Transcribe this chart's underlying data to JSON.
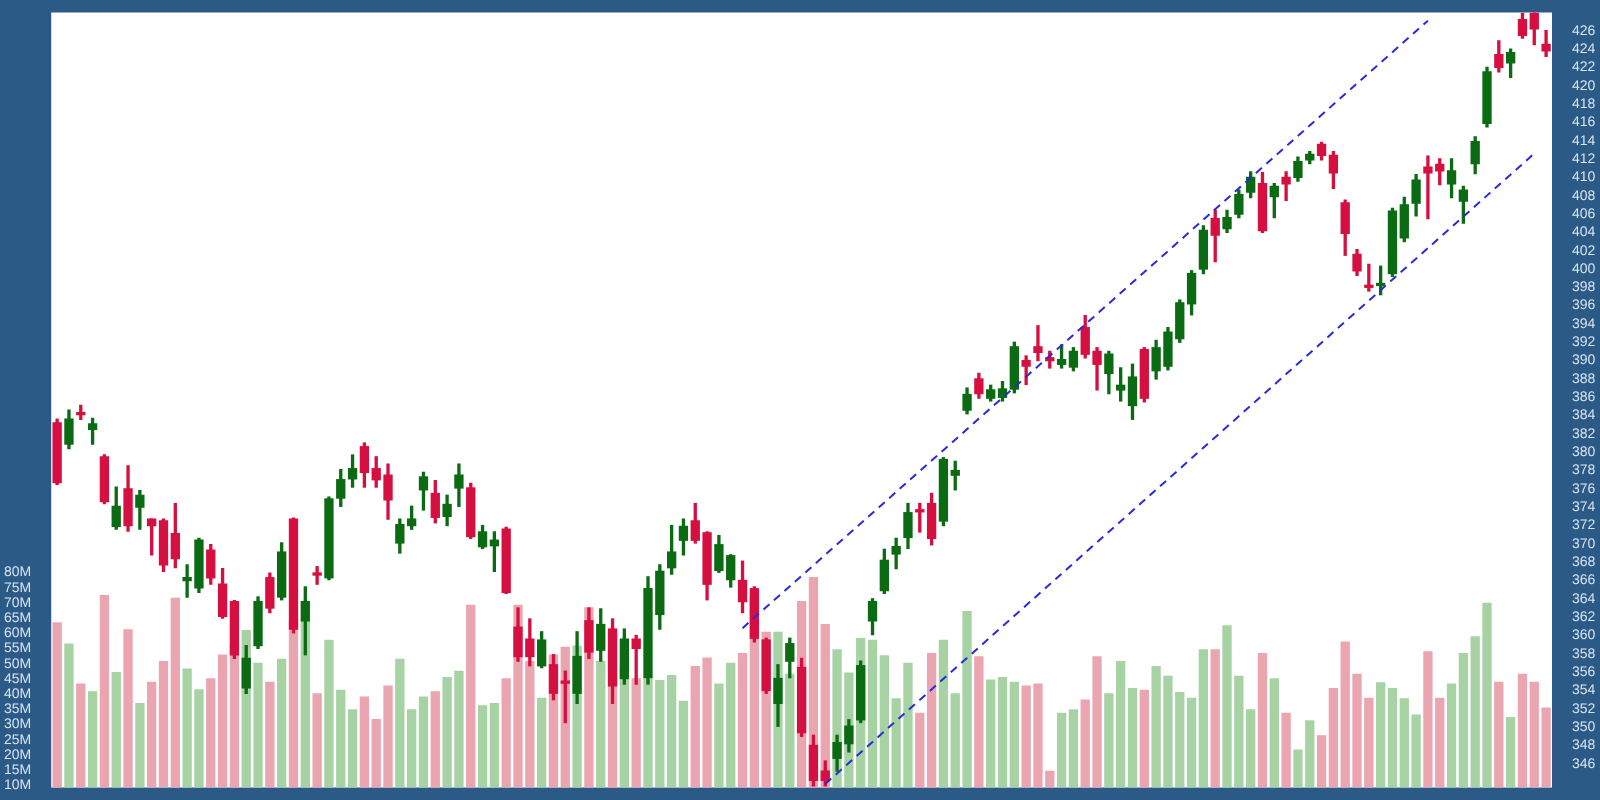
{
  "chart_data": {
    "type": "candlestick",
    "categories": [
      null,
      null,
      null,
      null,
      null,
      null,
      null,
      null,
      null,
      null,
      null,
      null,
      null,
      null,
      null,
      null,
      null,
      null,
      null,
      null,
      null,
      null,
      null,
      null,
      null,
      null,
      null,
      null,
      null,
      null,
      null,
      null,
      null,
      null,
      null,
      null,
      null,
      null,
      null,
      null,
      null,
      null,
      null,
      null,
      null,
      null,
      null,
      null,
      null,
      null,
      null,
      null,
      null,
      null,
      null,
      null,
      null,
      null,
      null,
      null,
      null,
      null,
      null,
      null,
      null,
      null,
      null,
      null,
      null,
      null,
      null,
      null,
      null,
      null,
      null,
      null,
      null,
      null,
      null,
      null,
      null,
      null,
      null,
      null,
      null,
      null,
      null,
      null,
      null,
      null,
      null,
      null,
      null,
      null,
      null,
      null,
      null,
      null,
      null,
      null,
      null,
      null,
      null,
      null,
      null,
      null,
      null,
      null,
      null,
      null,
      null,
      null,
      null,
      null,
      null,
      null,
      null,
      null,
      null,
      null,
      null,
      null,
      null,
      null,
      null,
      null,
      null
    ],
    "ohlc": [
      [
        383.2,
        383.6,
        376.5,
        376.7
      ],
      [
        380.9,
        384.6,
        380.4,
        383.6
      ],
      [
        384.2,
        385.1,
        383.6,
        384.1
      ],
      [
        382.5,
        383.7,
        380.9,
        383.1
      ],
      [
        379.5,
        379.7,
        374.4,
        374.6
      ],
      [
        371.9,
        376.2,
        371.6,
        374.1
      ],
      [
        376.0,
        378.5,
        371.4,
        372.0
      ],
      [
        374.0,
        375.8,
        371.6,
        375.3
      ],
      [
        372.7,
        372.7,
        368.8,
        372.0
      ],
      [
        372.5,
        372.7,
        367.0,
        367.7
      ],
      [
        371.1,
        374.4,
        367.4,
        368.4
      ],
      [
        366.0,
        367.7,
        364.2,
        366.3
      ],
      [
        365.2,
        370.6,
        364.7,
        370.4
      ],
      [
        369.3,
        369.9,
        365.6,
        366.3
      ],
      [
        365.6,
        367.3,
        361.9,
        362.1
      ],
      [
        363.7,
        363.8,
        357.5,
        357.9
      ],
      [
        354.3,
        358.9,
        353.7,
        357.5
      ],
      [
        358.9,
        364.2,
        358.6,
        363.7
      ],
      [
        366.3,
        366.8,
        362.5,
        363.0
      ],
      [
        364.2,
        370.1,
        363.9,
        369.1
      ],
      [
        372.7,
        372.8,
        360.3,
        360.7
      ],
      [
        361.6,
        365.3,
        357.9,
        363.7
      ],
      [
        366.7,
        367.5,
        365.6,
        366.6
      ],
      [
        366.3,
        375.1,
        366.1,
        374.9
      ],
      [
        375.0,
        378.1,
        374.1,
        377.0
      ],
      [
        377.1,
        379.7,
        376.2,
        378.2
      ],
      [
        380.6,
        381.0,
        376.2,
        377.8
      ],
      [
        378.2,
        379.5,
        376.2,
        377.0
      ],
      [
        377.5,
        378.7,
        372.7,
        374.8
      ],
      [
        370.1,
        372.7,
        369.0,
        372.1
      ],
      [
        372.0,
        374.1,
        371.6,
        372.7
      ],
      [
        375.9,
        377.8,
        373.7,
        377.3
      ],
      [
        375.5,
        376.9,
        372.3,
        372.9
      ],
      [
        373.0,
        375.3,
        372.0,
        374.3
      ],
      [
        376.1,
        378.7,
        374.1,
        377.5
      ],
      [
        376.1,
        376.6,
        370.6,
        370.8
      ],
      [
        369.7,
        372.0,
        369.5,
        371.3
      ],
      [
        369.8,
        371.3,
        367.0,
        370.4
      ],
      [
        371.6,
        371.8,
        364.6,
        364.7
      ],
      [
        360.9,
        363.0,
        357.2,
        357.7
      ],
      [
        359.6,
        361.8,
        356.7,
        357.7
      ],
      [
        356.7,
        360.4,
        356.5,
        359.5
      ],
      [
        356.8,
        357.9,
        353.0,
        353.7
      ],
      [
        354.9,
        356.1,
        350.5,
        354.8
      ],
      [
        353.7,
        360.4,
        352.6,
        357.7
      ],
      [
        361.6,
        363.0,
        357.5,
        358.2
      ],
      [
        358.4,
        362.9,
        357.2,
        361.2
      ],
      [
        360.7,
        361.8,
        352.6,
        354.5
      ],
      [
        355.3,
        360.7,
        354.7,
        359.6
      ],
      [
        359.6,
        360.0,
        354.7,
        358.6
      ],
      [
        355.4,
        366.4,
        354.7,
        365.1
      ],
      [
        362.3,
        367.7,
        360.7,
        367.0
      ],
      [
        367.4,
        372.0,
        366.7,
        369.1
      ],
      [
        370.4,
        372.7,
        368.8,
        371.9
      ],
      [
        372.5,
        374.4,
        370.1,
        370.4
      ],
      [
        371.2,
        371.3,
        363.9,
        365.6
      ],
      [
        367.1,
        370.9,
        366.9,
        369.9
      ],
      [
        366.1,
        368.8,
        365.3,
        368.7
      ],
      [
        366.0,
        368.1,
        362.5,
        363.7
      ],
      [
        365.1,
        365.3,
        359.3,
        359.7
      ],
      [
        359.5,
        359.7,
        353.7,
        354.0
      ],
      [
        352.6,
        356.8,
        350.1,
        355.3
      ],
      [
        357.2,
        359.7,
        355.4,
        359.1
      ],
      [
        356.5,
        357.5,
        349.0,
        349.4
      ],
      [
        348.0,
        349.1,
        343.6,
        344.2
      ],
      [
        345.2,
        346.3,
        343.6,
        344.2
      ],
      [
        346.6,
        349.1,
        345.2,
        348.3
      ],
      [
        348.2,
        350.8,
        347.3,
        350.1
      ],
      [
        350.8,
        357.2,
        350.5,
        356.7
      ],
      [
        361.6,
        364.0,
        360.1,
        363.7
      ],
      [
        364.9,
        369.4,
        364.6,
        368.2
      ],
      [
        368.9,
        370.6,
        367.3,
        369.7
      ],
      [
        370.7,
        374.4,
        369.5,
        373.4
      ],
      [
        373.6,
        374.4,
        371.3,
        373.5
      ],
      [
        374.4,
        375.5,
        369.9,
        370.6
      ],
      [
        372.5,
        379.4,
        372.0,
        379.2
      ],
      [
        377.5,
        379.0,
        375.9,
        378.0
      ],
      [
        384.6,
        387.0,
        384.2,
        386.3
      ],
      [
        388.0,
        388.6,
        385.9,
        386.4
      ],
      [
        385.9,
        387.3,
        385.6,
        386.8
      ],
      [
        386.0,
        387.7,
        385.6,
        386.9
      ],
      [
        386.9,
        392.0,
        386.5,
        391.5
      ],
      [
        390.0,
        390.5,
        387.4,
        389.4
      ],
      [
        391.5,
        393.8,
        390.0,
        390.9
      ],
      [
        390.3,
        391.0,
        389.2,
        390.0
      ],
      [
        389.6,
        391.7,
        389.2,
        390.1
      ],
      [
        389.3,
        391.4,
        388.9,
        391.0
      ],
      [
        393.6,
        394.9,
        390.3,
        390.7
      ],
      [
        391.0,
        391.4,
        386.8,
        389.6
      ],
      [
        388.6,
        391.0,
        386.4,
        390.7
      ],
      [
        386.8,
        389.2,
        385.6,
        387.3
      ],
      [
        385.1,
        389.6,
        383.6,
        388.2
      ],
      [
        391.2,
        391.4,
        385.5,
        385.9
      ],
      [
        388.9,
        392.2,
        388.0,
        391.4
      ],
      [
        389.4,
        393.6,
        389.0,
        393.1
      ],
      [
        392.4,
        396.6,
        392.0,
        396.3
      ],
      [
        396.2,
        399.8,
        395.0,
        399.5
      ],
      [
        400.0,
        404.7,
        399.5,
        404.2
      ],
      [
        405.5,
        406.4,
        400.8,
        403.7
      ],
      [
        404.4,
        406.4,
        404.0,
        405.6
      ],
      [
        406.0,
        408.6,
        405.6,
        408.1
      ],
      [
        408.4,
        410.6,
        407.8,
        410.0
      ],
      [
        409.3,
        410.5,
        404.0,
        404.2
      ],
      [
        407.9,
        409.3,
        405.6,
        409.0
      ],
      [
        410.0,
        410.6,
        407.5,
        409.3
      ],
      [
        410.0,
        412.2,
        409.6,
        411.7
      ],
      [
        411.9,
        412.8,
        411.5,
        412.5
      ],
      [
        413.6,
        413.8,
        411.9,
        412.4
      ],
      [
        412.4,
        412.8,
        408.8,
        410.5
      ],
      [
        407.2,
        407.5,
        401.5,
        403.9
      ],
      [
        401.6,
        402.1,
        399.3,
        399.8
      ],
      [
        398.1,
        400.5,
        397.6,
        398.0
      ],
      [
        398.2,
        400.3,
        397.2,
        398.3
      ],
      [
        399.5,
        406.6,
        399.2,
        406.3
      ],
      [
        403.4,
        407.8,
        403.0,
        407.0
      ],
      [
        407.2,
        410.3,
        405.8,
        409.7
      ],
      [
        411.1,
        412.3,
        405.5,
        410.5
      ],
      [
        411.4,
        412.0,
        409.2,
        410.7
      ],
      [
        409.3,
        412.0,
        407.8,
        410.7
      ],
      [
        407.4,
        409.0,
        405.0,
        408.6
      ],
      [
        411.5,
        414.4,
        410.4,
        413.9
      ],
      [
        415.9,
        422.0,
        415.5,
        421.5
      ],
      [
        423.4,
        424.9,
        421.5,
        422.0
      ],
      [
        422.5,
        424.0,
        420.9,
        423.6
      ],
      [
        427.2,
        427.9,
        425.2,
        425.5
      ],
      [
        427.9,
        428.0,
        424.5,
        426.2
      ],
      [
        424.5,
        426.0,
        423.2,
        423.8
      ]
    ],
    "colors": [
      "#d50f3f",
      "#0a6b12",
      "#d50f3f",
      "#0a6b12",
      "#d50f3f",
      "#0a6b12",
      "#d50f3f",
      "#0a6b12",
      "#d50f3f",
      "#d50f3f",
      "#d50f3f",
      "#0a6b12",
      "#0a6b12",
      "#d50f3f",
      "#d50f3f",
      "#d50f3f",
      "#0a6b12",
      "#0a6b12",
      "#d50f3f",
      "#0a6b12",
      "#d50f3f",
      "#0a6b12",
      "#d50f3f",
      "#0a6b12",
      "#0a6b12",
      "#0a6b12",
      "#d50f3f",
      "#d50f3f",
      "#d50f3f",
      "#0a6b12",
      "#0a6b12",
      "#0a6b12",
      "#d50f3f",
      "#0a6b12",
      "#0a6b12",
      "#d50f3f",
      "#0a6b12",
      "#0a6b12",
      "#d50f3f",
      "#d50f3f",
      "#d50f3f",
      "#0a6b12",
      "#d50f3f",
      "#d50f3f",
      "#0a6b12",
      "#d50f3f",
      "#0a6b12",
      "#d50f3f",
      "#0a6b12",
      "#d50f3f",
      "#0a6b12",
      "#0a6b12",
      "#0a6b12",
      "#0a6b12",
      "#d50f3f",
      "#d50f3f",
      "#0a6b12",
      "#0a6b12",
      "#d50f3f",
      "#d50f3f",
      "#d50f3f",
      "#0a6b12",
      "#0a6b12",
      "#d50f3f",
      "#d50f3f",
      "#d50f3f",
      "#0a6b12",
      "#0a6b12",
      "#0a6b12",
      "#0a6b12",
      "#0a6b12",
      "#0a6b12",
      "#0a6b12",
      "#d50f3f",
      "#d50f3f",
      "#0a6b12",
      "#0a6b12",
      "#0a6b12",
      "#d50f3f",
      "#0a6b12",
      "#0a6b12",
      "#0a6b12",
      "#d50f3f",
      "#d50f3f",
      "#d50f3f",
      "#0a6b12",
      "#0a6b12",
      "#d50f3f",
      "#d50f3f",
      "#0a6b12",
      "#0a6b12",
      "#0a6b12",
      "#d50f3f",
      "#0a6b12",
      "#0a6b12",
      "#0a6b12",
      "#0a6b12",
      "#0a6b12",
      "#d50f3f",
      "#0a6b12",
      "#0a6b12",
      "#0a6b12",
      "#d50f3f",
      "#0a6b12",
      "#d50f3f",
      "#0a6b12",
      "#0a6b12",
      "#d50f3f",
      "#d50f3f",
      "#d50f3f",
      "#d50f3f",
      "#d50f3f",
      "#0a6b12",
      "#0a6b12",
      "#0a6b12",
      "#0a6b12",
      "#d50f3f",
      "#d50f3f",
      "#0a6b12",
      "#0a6b12",
      "#0a6b12",
      "#0a6b12",
      "#d50f3f",
      "#0a6b12",
      "#d50f3f",
      "#d50f3f",
      "#d50f3f"
    ],
    "series": [
      {
        "type": "bar",
        "axis": "y2",
        "values": [
          63.4,
          56.4,
          43.3,
          40.7,
          72.4,
          47.1,
          61.1,
          36.9,
          43.9,
          50.7,
          71.5,
          48.2,
          41.4,
          45.0,
          52.8,
          56.4,
          60.9,
          50.1,
          43.9,
          51.4,
          64.1,
          64.5,
          40.1,
          57.7,
          41.2,
          34.8,
          39.0,
          31.6,
          42.6,
          51.4,
          34.8,
          39.0,
          40.7,
          45.4,
          47.5,
          69.2,
          36.1,
          36.9,
          45.0,
          69.2,
          50.7,
          38.6,
          52.8,
          55.4,
          55.8,
          68.3,
          50.7,
          59.8,
          49.2,
          45.0,
          45.0,
          44.4,
          46.1,
          37.6,
          49.0,
          51.8,
          43.3,
          50.1,
          53.3,
          71.9,
          60.3,
          60.3,
          46.5,
          70.4,
          78.3,
          62.8,
          54.5,
          46.9,
          58.2,
          57.7,
          52.6,
          38.4,
          50.1,
          33.7,
          53.3,
          57.7,
          40.1,
          67.1,
          52.2,
          44.6,
          45.4,
          43.9,
          42.6,
          43.3,
          14.6,
          33.7,
          34.8,
          38.0,
          52.2,
          40.1,
          50.7,
          41.8,
          41.2,
          49.0,
          45.8,
          40.5,
          38.6,
          54.5,
          54.5,
          62.4,
          45.8,
          34.8,
          53.3,
          45.0,
          33.7,
          21.6,
          31.2,
          26.3,
          41.8,
          57.1,
          46.5,
          38.6,
          43.7,
          41.8,
          38.4,
          33.1,
          53.9,
          38.6,
          43.3,
          53.3,
          58.8,
          69.8,
          43.9,
          32.3,
          46.5,
          43.9,
          35.4
        ],
        "colors": [
          "#eba5b1",
          "#a7d3a4",
          "#eba5b1",
          "#a7d3a4",
          "#eba5b1",
          "#a7d3a4",
          "#eba5b1",
          "#a7d3a4",
          "#eba5b1",
          "#eba5b1",
          "#eba5b1",
          "#a7d3a4",
          "#a7d3a4",
          "#eba5b1",
          "#eba5b1",
          "#eba5b1",
          "#a7d3a4",
          "#a7d3a4",
          "#eba5b1",
          "#a7d3a4",
          "#eba5b1",
          "#a7d3a4",
          "#eba5b1",
          "#a7d3a4",
          "#a7d3a4",
          "#a7d3a4",
          "#eba5b1",
          "#eba5b1",
          "#eba5b1",
          "#a7d3a4",
          "#a7d3a4",
          "#a7d3a4",
          "#eba5b1",
          "#a7d3a4",
          "#a7d3a4",
          "#eba5b1",
          "#a7d3a4",
          "#a7d3a4",
          "#eba5b1",
          "#eba5b1",
          "#eba5b1",
          "#a7d3a4",
          "#eba5b1",
          "#eba5b1",
          "#a7d3a4",
          "#eba5b1",
          "#a7d3a4",
          "#eba5b1",
          "#a7d3a4",
          "#eba5b1",
          "#a7d3a4",
          "#a7d3a4",
          "#a7d3a4",
          "#a7d3a4",
          "#eba5b1",
          "#eba5b1",
          "#a7d3a4",
          "#a7d3a4",
          "#eba5b1",
          "#eba5b1",
          "#eba5b1",
          "#a7d3a4",
          "#a7d3a4",
          "#eba5b1",
          "#eba5b1",
          "#eba5b1",
          "#a7d3a4",
          "#a7d3a4",
          "#a7d3a4",
          "#a7d3a4",
          "#a7d3a4",
          "#a7d3a4",
          "#a7d3a4",
          "#eba5b1",
          "#eba5b1",
          "#a7d3a4",
          "#a7d3a4",
          "#a7d3a4",
          "#eba5b1",
          "#a7d3a4",
          "#a7d3a4",
          "#a7d3a4",
          "#eba5b1",
          "#eba5b1",
          "#eba5b1",
          "#a7d3a4",
          "#a7d3a4",
          "#eba5b1",
          "#eba5b1",
          "#a7d3a4",
          "#a7d3a4",
          "#a7d3a4",
          "#eba5b1",
          "#a7d3a4",
          "#a7d3a4",
          "#a7d3a4",
          "#a7d3a4",
          "#a7d3a4",
          "#eba5b1",
          "#a7d3a4",
          "#a7d3a4",
          "#a7d3a4",
          "#eba5b1",
          "#a7d3a4",
          "#eba5b1",
          "#a7d3a4",
          "#a7d3a4",
          "#eba5b1",
          "#eba5b1",
          "#eba5b1",
          "#eba5b1",
          "#eba5b1",
          "#a7d3a4",
          "#a7d3a4",
          "#a7d3a4",
          "#a7d3a4",
          "#eba5b1",
          "#eba5b1",
          "#a7d3a4",
          "#a7d3a4",
          "#a7d3a4",
          "#a7d3a4",
          "#eba5b1",
          "#a7d3a4",
          "#eba5b1",
          "#eba5b1",
          "#eba5b1"
        ]
      },
      {
        "type": "line",
        "color": "#2a2ad8",
        "line_style": "dashed",
        "values": [
          null,
          null,
          null,
          null,
          null,
          null,
          null,
          null,
          null,
          null,
          null,
          null,
          null,
          null,
          null,
          null,
          null,
          null,
          null,
          null,
          null,
          null,
          null,
          null,
          null,
          null,
          null,
          null,
          null,
          null,
          null,
          null,
          null,
          null,
          null,
          null,
          null,
          null,
          null,
          null,
          null,
          null,
          null,
          null,
          null,
          null,
          null,
          null,
          null,
          null,
          null,
          null,
          null,
          null,
          null,
          null,
          null,
          null,
          360.8,
          null,
          null,
          null,
          null,
          null,
          null,
          null,
          null,
          null,
          null,
          null,
          null,
          null,
          null,
          null,
          null,
          null,
          null,
          null,
          null,
          null,
          null,
          null,
          null,
          null,
          null,
          null,
          null,
          null,
          null,
          null,
          null,
          null,
          null,
          null,
          null,
          null,
          null,
          null,
          null,
          null,
          null,
          null,
          null,
          null,
          null,
          null,
          null,
          null,
          null,
          null,
          null,
          null,
          null,
          null,
          null,
          null,
          427.1,
          null,
          null,
          null,
          null,
          null,
          null,
          null,
          null,
          null,
          null
        ]
      },
      {
        "type": "line",
        "color": "#2a2ad8",
        "line_style": "dashed",
        "values": [
          null,
          null,
          null,
          null,
          null,
          null,
          null,
          null,
          null,
          null,
          null,
          null,
          null,
          null,
          null,
          null,
          null,
          null,
          null,
          null,
          null,
          null,
          null,
          null,
          null,
          null,
          null,
          null,
          null,
          null,
          null,
          null,
          null,
          null,
          null,
          null,
          null,
          null,
          null,
          null,
          null,
          null,
          null,
          null,
          null,
          null,
          null,
          null,
          null,
          null,
          null,
          null,
          null,
          null,
          null,
          null,
          null,
          null,
          null,
          null,
          null,
          null,
          null,
          null,
          null,
          343.8,
          null,
          null,
          null,
          null,
          null,
          null,
          null,
          null,
          null,
          null,
          null,
          null,
          null,
          null,
          null,
          null,
          null,
          null,
          null,
          null,
          null,
          null,
          null,
          null,
          null,
          null,
          null,
          null,
          null,
          null,
          null,
          null,
          null,
          null,
          null,
          null,
          null,
          null,
          null,
          null,
          null,
          null,
          null,
          null,
          null,
          null,
          null,
          null,
          null,
          null,
          null,
          null,
          null,
          null,
          null,
          null,
          null,
          null,
          null,
          412.6,
          null
        ]
      }
    ],
    "ylim": [
      343.4,
      428.0
    ],
    "yticks": [
      346,
      348,
      350,
      352,
      354,
      356,
      358,
      360,
      362,
      364,
      366,
      368,
      370,
      372,
      374,
      376,
      378,
      380,
      382,
      384,
      386,
      388,
      390,
      392,
      394,
      396,
      398,
      400,
      402,
      404,
      406,
      408,
      410,
      412,
      414,
      416,
      418,
      420,
      422,
      424,
      426
    ],
    "y2lim": [
      9.3,
      264
    ],
    "y2ticks": [
      {
        "value": 10,
        "label": "10M"
      },
      {
        "value": 15,
        "label": "15M"
      },
      {
        "value": 20,
        "label": "20M"
      },
      {
        "value": 25,
        "label": "25M"
      },
      {
        "value": 30,
        "label": "30M"
      },
      {
        "value": 35,
        "label": "35M"
      },
      {
        "value": 40,
        "label": "40M"
      },
      {
        "value": 45,
        "label": "45M"
      },
      {
        "value": 50,
        "label": "50M"
      },
      {
        "value": 55,
        "label": "55M"
      },
      {
        "value": 60,
        "label": "60M"
      },
      {
        "value": 65,
        "label": "65M"
      },
      {
        "value": 70,
        "label": "70M"
      },
      {
        "value": 75,
        "label": "75M"
      },
      {
        "value": 80,
        "label": "80M"
      }
    ],
    "tick_labels": "y",
    "marker": "none",
    "legend": false,
    "grid": false
  }
}
